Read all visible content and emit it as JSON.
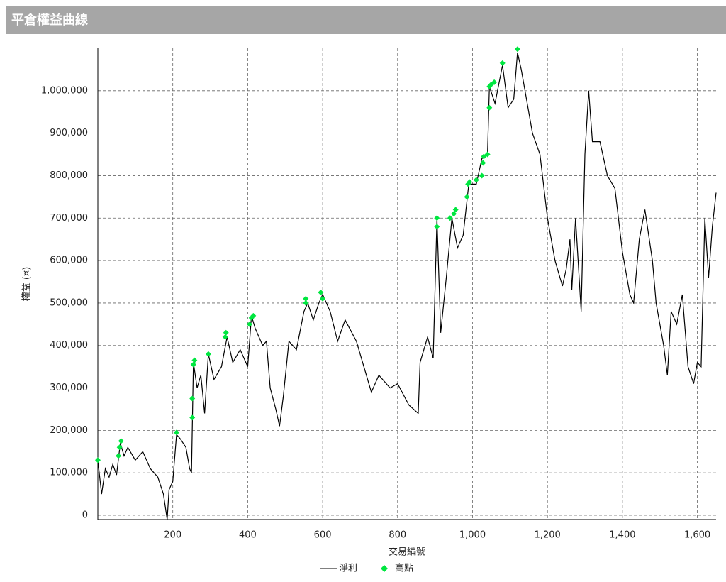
{
  "chart_data": {
    "type": "line",
    "header": "平倉權益曲線",
    "x_label": "交易編號",
    "y_label": "權益 (¤)",
    "xlim": [
      0,
      1650
    ],
    "ylim": [
      -10000,
      1100000
    ],
    "xticks": [
      200,
      400,
      600,
      800,
      {
        "value": 1000,
        "label": "1,000"
      },
      {
        "value": 1200,
        "label": "1,200"
      },
      {
        "value": 1400,
        "label": "1,400"
      },
      {
        "value": 1600,
        "label": "1,600"
      }
    ],
    "yticks": [
      0,
      {
        "value": 100000,
        "label": "100,000"
      },
      {
        "value": 200000,
        "label": "200,000"
      },
      {
        "value": 300000,
        "label": "300,000"
      },
      {
        "value": 400000,
        "label": "400,000"
      },
      {
        "value": 500000,
        "label": "500,000"
      },
      {
        "value": 600000,
        "label": "600,000"
      },
      {
        "value": 700000,
        "label": "700,000"
      },
      {
        "value": 800000,
        "label": "800,000"
      },
      {
        "value": 900000,
        "label": "900,000"
      },
      {
        "value": 1000000,
        "label": "1,000,000"
      }
    ],
    "grid": true,
    "series": [
      {
        "name": "淨利",
        "color": "#000000",
        "x": [
          0,
          10,
          20,
          30,
          40,
          50,
          60,
          70,
          80,
          100,
          120,
          140,
          160,
          175,
          185,
          190,
          200,
          210,
          220,
          235,
          245,
          250,
          255,
          265,
          275,
          285,
          295,
          310,
          330,
          345,
          360,
          380,
          400,
          410,
          420,
          440,
          450,
          460,
          475,
          485,
          495,
          510,
          530,
          550,
          560,
          575,
          590,
          600,
          620,
          640,
          660,
          690,
          710,
          730,
          750,
          780,
          800,
          830,
          855,
          860,
          880,
          895,
          905,
          915,
          930,
          945,
          960,
          975,
          990,
          1010,
          1025,
          1040,
          1045,
          1060,
          1080,
          1095,
          1110,
          1120,
          1130,
          1140,
          1160,
          1180,
          1200,
          1220,
          1240,
          1250,
          1260,
          1265,
          1275,
          1290,
          1300,
          1310,
          1320,
          1340,
          1360,
          1380,
          1400,
          1420,
          1430,
          1445,
          1460,
          1480,
          1490,
          1510,
          1520,
          1530,
          1545,
          1560,
          1575,
          1590,
          1600,
          1610,
          1620,
          1630,
          1640,
          1650
        ],
        "values": [
          130000,
          50000,
          110000,
          90000,
          120000,
          95000,
          170000,
          140000,
          160000,
          130000,
          150000,
          110000,
          90000,
          50000,
          -10000,
          60000,
          80000,
          190000,
          180000,
          160000,
          110000,
          100000,
          360000,
          300000,
          330000,
          240000,
          380000,
          320000,
          350000,
          420000,
          360000,
          390000,
          350000,
          470000,
          440000,
          400000,
          410000,
          300000,
          250000,
          210000,
          280000,
          410000,
          390000,
          480000,
          500000,
          460000,
          500000,
          520000,
          480000,
          410000,
          460000,
          410000,
          350000,
          290000,
          330000,
          300000,
          310000,
          260000,
          240000,
          360000,
          420000,
          370000,
          700000,
          430000,
          560000,
          700000,
          630000,
          660000,
          780000,
          780000,
          840000,
          850000,
          1010000,
          970000,
          1060000,
          960000,
          980000,
          1090000,
          1050000,
          1000000,
          900000,
          850000,
          700000,
          600000,
          540000,
          580000,
          650000,
          530000,
          700000,
          480000,
          850000,
          1000000,
          880000,
          880000,
          800000,
          770000,
          620000,
          520000,
          500000,
          650000,
          720000,
          600000,
          500000,
          400000,
          330000,
          480000,
          450000,
          520000,
          350000,
          310000,
          360000,
          350000,
          700000,
          560000,
          680000,
          760000
        ]
      },
      {
        "name": "高點",
        "color": "#00e640",
        "x": [
          0,
          55,
          58,
          62,
          210,
          252,
          252,
          255,
          258,
          295,
          340,
          342,
          405,
          410,
          415,
          555,
          555,
          595,
          600,
          905,
          905,
          940,
          950,
          955,
          985,
          988,
          992,
          1010,
          1025,
          1028,
          1030,
          1040,
          1045,
          1045,
          1050,
          1058,
          1080,
          1120
        ],
        "values": [
          130000,
          140000,
          160000,
          175000,
          195000,
          230000,
          275000,
          355000,
          365000,
          380000,
          420000,
          430000,
          450000,
          465000,
          470000,
          510000,
          500000,
          525000,
          510000,
          680000,
          700000,
          700000,
          710000,
          720000,
          750000,
          780000,
          785000,
          790000,
          800000,
          830000,
          845000,
          850000,
          960000,
          1010000,
          1015000,
          1020000,
          1065000,
          1098000
        ]
      }
    ]
  }
}
